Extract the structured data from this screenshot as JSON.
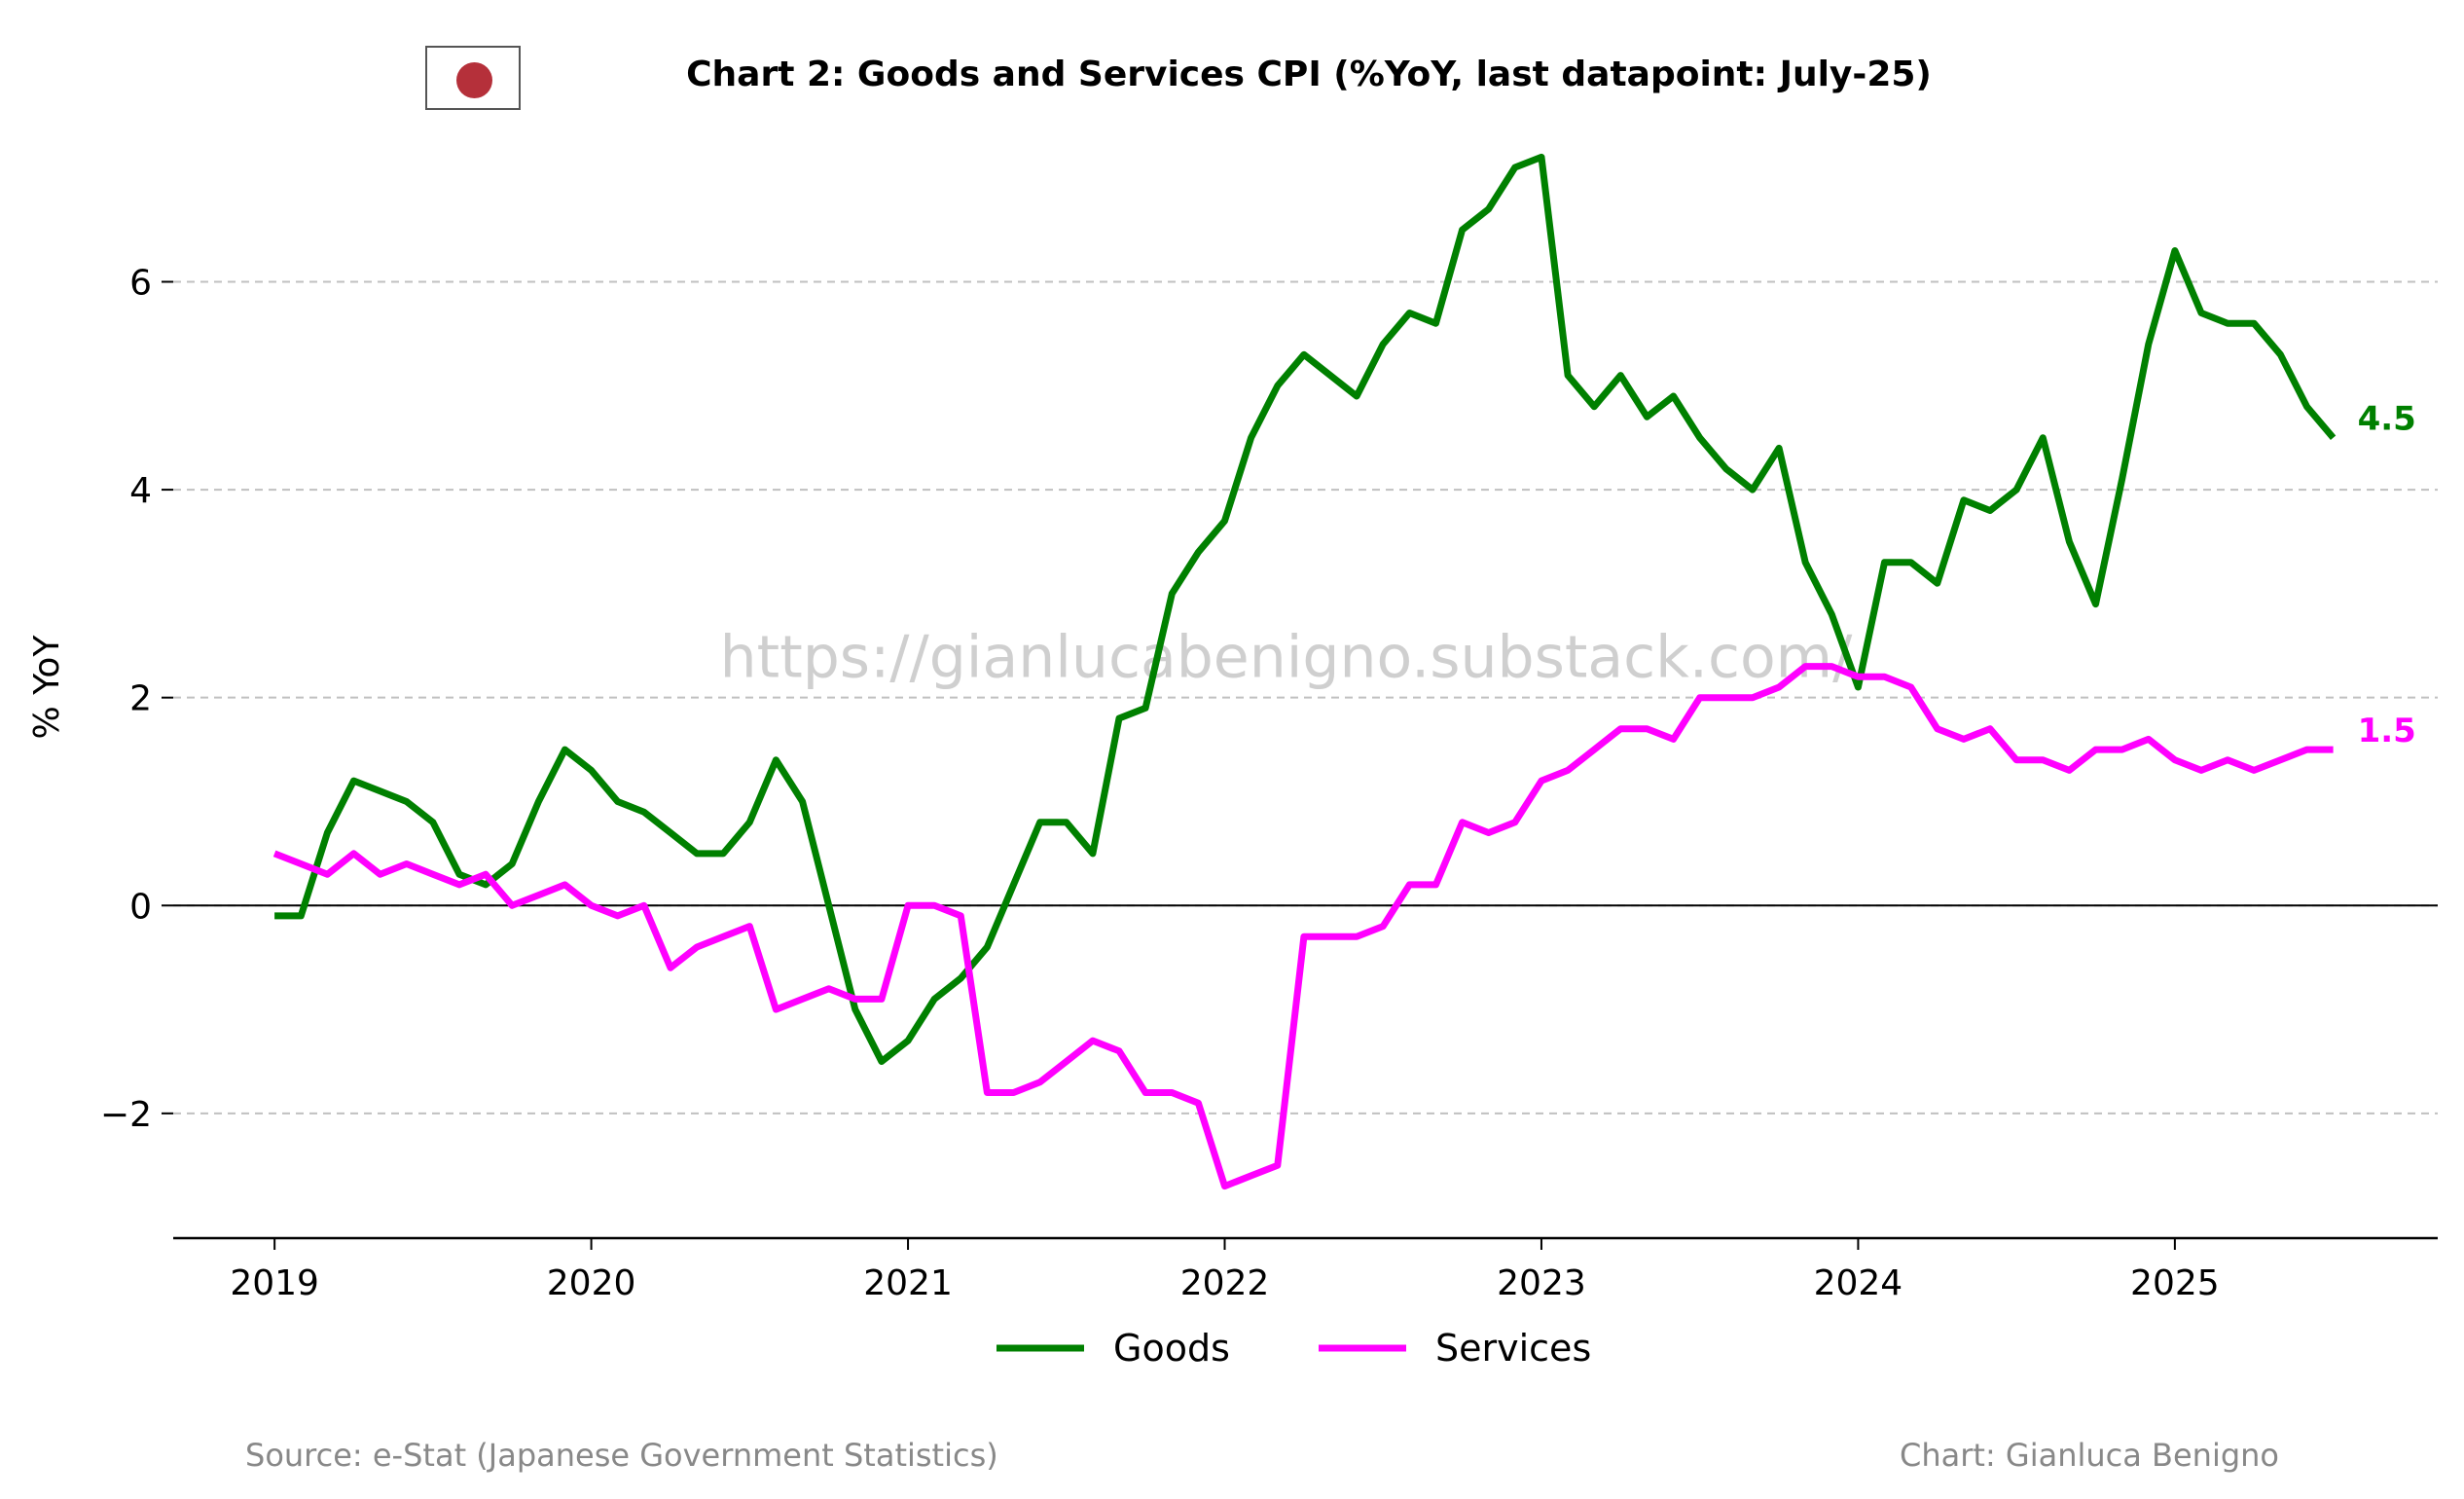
{
  "chart_data": {
    "type": "line",
    "title": "Chart 2: Goods and Services CPI (%YoY, last datapoint: July-25)",
    "ylabel": "% YoY",
    "xlabel": "",
    "x_start": "2019-01",
    "x_end": "2025-07",
    "xlim": [
      2018.68,
      2025.83
    ],
    "ylim": [
      -3.2,
      7.4
    ],
    "yticks": [
      -2,
      0,
      2,
      4,
      6
    ],
    "ytick_labels": [
      "−2",
      "0",
      "2",
      "4",
      "6"
    ],
    "xticks": [
      2019,
      2020,
      2021,
      2022,
      2023,
      2024,
      2025
    ],
    "xtick_labels": [
      "2019",
      "2020",
      "2021",
      "2022",
      "2023",
      "2024",
      "2025"
    ],
    "grid": "horizontal dashed at y ticks",
    "zero_line": true,
    "legend_position": "bottom-center",
    "watermark": "https://gianlucabenigno.substack.com/",
    "series": [
      {
        "name": "Goods",
        "color": "#008000",
        "end_label": "4.5",
        "values": [
          -0.1,
          -0.1,
          0.7,
          1.2,
          1.1,
          1.0,
          0.8,
          0.3,
          0.2,
          0.4,
          1.0,
          1.5,
          1.3,
          1.0,
          0.9,
          0.7,
          0.5,
          0.5,
          0.8,
          1.4,
          1.0,
          0.0,
          -1.0,
          -1.5,
          -1.3,
          -0.9,
          -0.7,
          -0.4,
          0.2,
          0.8,
          0.8,
          0.5,
          1.8,
          1.9,
          3.0,
          3.4,
          3.7,
          4.5,
          5.0,
          5.3,
          5.1,
          4.9,
          5.4,
          5.7,
          5.6,
          6.5,
          6.7,
          7.1,
          7.2,
          5.1,
          4.8,
          5.1,
          4.7,
          4.9,
          4.5,
          4.2,
          4.0,
          4.4,
          3.3,
          2.8,
          2.1,
          3.3,
          3.3,
          3.1,
          3.9,
          3.8,
          4.0,
          4.5,
          3.5,
          2.9,
          4.1,
          5.4,
          6.3,
          5.7,
          5.6,
          5.6,
          5.3,
          4.8,
          4.5
        ]
      },
      {
        "name": "Services",
        "color": "#ff00ff",
        "end_label": "1.5",
        "values": [
          0.5,
          0.4,
          0.3,
          0.5,
          0.3,
          0.4,
          0.3,
          0.2,
          0.3,
          0.0,
          0.1,
          0.2,
          0.0,
          -0.1,
          0.0,
          -0.6,
          -0.4,
          -0.3,
          -0.2,
          -1.0,
          -0.9,
          -0.8,
          -0.9,
          -0.9,
          0.0,
          0.0,
          -0.1,
          -1.8,
          -1.8,
          -1.7,
          -1.5,
          -1.3,
          -1.4,
          -1.8,
          -1.8,
          -1.9,
          -2.7,
          -2.6,
          -2.5,
          -0.3,
          -0.3,
          -0.3,
          -0.2,
          0.2,
          0.2,
          0.8,
          0.7,
          0.8,
          1.2,
          1.3,
          1.5,
          1.7,
          1.7,
          1.6,
          2.0,
          2.0,
          2.0,
          2.1,
          2.3,
          2.3,
          2.2,
          2.2,
          2.1,
          1.7,
          1.6,
          1.7,
          1.4,
          1.4,
          1.3,
          1.5,
          1.5,
          1.6,
          1.4,
          1.3,
          1.4,
          1.3,
          1.4,
          1.5,
          1.5
        ]
      }
    ]
  },
  "header": {
    "flag_icon": "japan-flag-icon"
  },
  "footer": {
    "source": "Source: e-Stat (Japanese Government Statistics)",
    "credit": "Chart: Gianluca Benigno"
  }
}
